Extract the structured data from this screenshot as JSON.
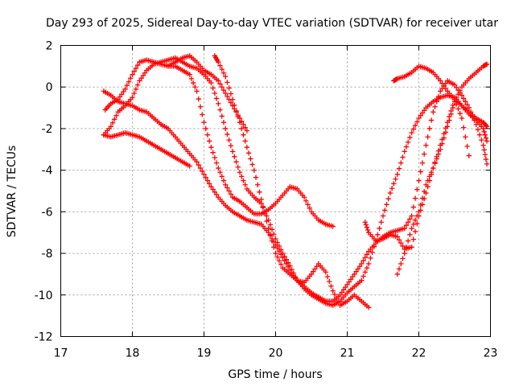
{
  "chart_data": {
    "type": "scatter",
    "title": "Day 293 of 2025, Sidereal Day-to-day VTEC variation (SDTVAR) for receiver utar",
    "xlabel": "GPS time / hours",
    "ylabel": "SDTVAR / TECUs",
    "xlim": [
      17,
      23
    ],
    "ylim": [
      -12,
      2
    ],
    "xticks": [
      "17",
      "18",
      "19",
      "20",
      "21",
      "22",
      "23"
    ],
    "yticks": [
      "-12",
      "-10",
      "-8",
      "-6",
      "-4",
      "-2",
      "0",
      "2"
    ],
    "grid": true,
    "marker": "plus",
    "color": "#ff0000",
    "series": [
      {
        "x": [
          17.62,
          17.7,
          17.8,
          17.9,
          18.0,
          18.1,
          18.2,
          18.3,
          18.4,
          18.5,
          18.6,
          18.7,
          18.8,
          18.9,
          19.0,
          19.1,
          19.2,
          19.3,
          19.4,
          19.5,
          19.6,
          19.7,
          19.8,
          19.9,
          20.0,
          20.1,
          20.2,
          20.3,
          20.4,
          20.5,
          20.6,
          20.7,
          20.8
        ],
        "y": [
          -1.1,
          -0.8,
          -0.6,
          -0.1,
          0.6,
          1.2,
          1.3,
          1.2,
          1.1,
          1.0,
          1.0,
          0.8,
          0.6,
          -0.2,
          -1.7,
          -2.9,
          -3.9,
          -4.7,
          -5.3,
          -5.5,
          -5.8,
          -6.1,
          -6.1,
          -5.9,
          -5.6,
          -5.2,
          -4.8,
          -4.9,
          -5.3,
          -6.0,
          -6.4,
          -6.6,
          -6.7
        ]
      },
      {
        "x": [
          17.6,
          17.7,
          17.8,
          17.9,
          18.0,
          18.1,
          18.2,
          18.3,
          18.4,
          18.5,
          18.6,
          18.7,
          18.8,
          18.9,
          19.0,
          19.1,
          19.2,
          19.3,
          19.4,
          19.5,
          19.6,
          19.7,
          19.8,
          19.9,
          20.0,
          20.1,
          20.2,
          20.3,
          20.4,
          20.5,
          20.6,
          20.7,
          20.8,
          20.9,
          21.0,
          21.1,
          21.2,
          21.3,
          21.4,
          21.5,
          21.6,
          21.7,
          21.8,
          21.9,
          22.0,
          22.1,
          22.2,
          22.3,
          22.4,
          22.5,
          22.6,
          22.7,
          22.8,
          22.9,
          22.95
        ],
        "y": [
          -2.3,
          -1.9,
          -1.2,
          -0.9,
          -0.5,
          0.3,
          0.8,
          1.1,
          1.2,
          1.3,
          1.4,
          1.2,
          1.0,
          0.9,
          0.6,
          0.2,
          -0.8,
          -2.0,
          -3.1,
          -4.1,
          -4.9,
          -5.3,
          -5.6,
          -6.4,
          -7.3,
          -8.0,
          -8.6,
          -9.3,
          -9.7,
          -10.0,
          -10.2,
          -10.4,
          -10.5,
          -10.3,
          -9.9,
          -9.6,
          -9.3,
          -8.5,
          -7.4,
          -6.2,
          -5.1,
          -4.2,
          -3.1,
          -2.2,
          -1.5,
          -1.0,
          -0.7,
          -0.5,
          -0.4,
          -0.5,
          -0.9,
          -1.2,
          -1.5,
          -1.7,
          -1.9
        ]
      },
      {
        "x": [
          17.6,
          17.7,
          17.8,
          17.9,
          18.0,
          18.1,
          18.2,
          18.3,
          18.4,
          18.5,
          18.6,
          18.7,
          18.8,
          18.9,
          19.0,
          19.1,
          19.2,
          19.3,
          19.4,
          19.5,
          19.6,
          19.7,
          19.8,
          19.9,
          20.0,
          20.1,
          20.2,
          20.3,
          20.4,
          20.5,
          20.6,
          20.7,
          20.8,
          20.9,
          21.0,
          21.1,
          21.2,
          21.3,
          21.4,
          21.5,
          21.6,
          21.7,
          21.8,
          21.9,
          22.0,
          22.1,
          22.2,
          22.3,
          22.4,
          22.5,
          22.6,
          22.7,
          22.8,
          22.9,
          22.95
        ],
        "y": [
          -0.2,
          -0.4,
          -0.7,
          -0.8,
          -0.9,
          -1.1,
          -1.2,
          -1.5,
          -1.8,
          -2.0,
          -2.4,
          -2.8,
          -3.2,
          -3.6,
          -4.2,
          -4.8,
          -5.3,
          -5.7,
          -6.0,
          -6.2,
          -6.4,
          -6.5,
          -6.6,
          -7.0,
          -7.6,
          -8.2,
          -8.8,
          -9.3,
          -9.6,
          -9.9,
          -10.1,
          -10.3,
          -10.3,
          -10.0,
          -9.5,
          -9.0,
          -8.5,
          -7.9,
          -7.5,
          -7.2,
          -7.0,
          -6.9,
          -6.8,
          -6.2,
          -4.5,
          -2.8,
          -1.2,
          -0.2,
          0.3,
          0.1,
          -0.4,
          -1.0,
          -1.8,
          -2.8,
          -3.7
        ]
      },
      {
        "x": [
          17.6,
          17.7,
          17.8,
          17.9,
          18.0,
          18.1,
          18.2,
          18.3,
          18.4,
          18.5,
          18.6,
          18.7,
          18.8
        ],
        "y": [
          -2.3,
          -2.4,
          -2.3,
          -2.2,
          -2.3,
          -2.4,
          -2.6,
          -2.8,
          -3.0,
          -3.2,
          -3.4,
          -3.6,
          -3.8
        ]
      },
      {
        "x": [
          18.5,
          18.6,
          18.7,
          18.8,
          18.9,
          19.0,
          19.1,
          19.2,
          19.3,
          19.4,
          19.5,
          19.6
        ],
        "y": [
          1.0,
          1.2,
          1.4,
          1.5,
          1.2,
          0.8,
          0.6,
          0.3,
          -0.3,
          -0.9,
          -1.5,
          -2.1
        ]
      },
      {
        "x": [
          19.15,
          19.2,
          19.3,
          19.4,
          19.5,
          19.6,
          19.7,
          19.8,
          19.9,
          20.0,
          20.1,
          20.2,
          20.3,
          20.4,
          20.5,
          20.6,
          20.7,
          20.8,
          20.9,
          21.0,
          21.1,
          21.2,
          21.3
        ],
        "y": [
          1.5,
          1.2,
          0.5,
          -0.6,
          -1.7,
          -2.9,
          -4.0,
          -5.4,
          -6.8,
          -8.0,
          -8.7,
          -9.0,
          -9.3,
          -9.4,
          -9.0,
          -8.5,
          -8.9,
          -9.8,
          -10.5,
          -10.3,
          -10.0,
          -10.3,
          -10.6
        ]
      },
      {
        "x": [
          21.25,
          21.3,
          21.4,
          21.5,
          21.6,
          21.7,
          21.8,
          21.9,
          22.0,
          22.1,
          22.2,
          22.3,
          22.4,
          22.5,
          22.6,
          22.7,
          22.8,
          22.9,
          22.95
        ],
        "y": [
          -6.5,
          -7.0,
          -7.4,
          -7.3,
          -7.1,
          -7.2,
          -7.8,
          -7.7,
          -6.2,
          -5.1,
          -3.9,
          -3.0,
          -1.9,
          -0.7,
          0.0,
          0.4,
          0.7,
          1.0,
          1.1
        ]
      },
      {
        "x": [
          21.7,
          21.8,
          21.9,
          22.0,
          22.1,
          22.2,
          22.3,
          22.4,
          22.5,
          22.6,
          22.7
        ],
        "y": [
          -9.0,
          -8.0,
          -6.8,
          -6.0,
          -4.7,
          -3.9,
          -2.8,
          -1.7,
          -0.6,
          -1.5,
          -3.3
        ]
      },
      {
        "x": [
          21.65,
          21.7,
          21.8,
          21.9,
          22.0,
          22.1,
          22.2,
          22.3,
          22.4,
          22.5,
          22.6,
          22.7,
          22.8,
          22.9,
          22.95
        ],
        "y": [
          0.3,
          0.4,
          0.5,
          0.7,
          1.0,
          0.9,
          0.7,
          0.3,
          -0.2,
          -0.6,
          -0.9,
          -1.3,
          -1.6,
          -2.0,
          -2.6
        ]
      }
    ]
  }
}
